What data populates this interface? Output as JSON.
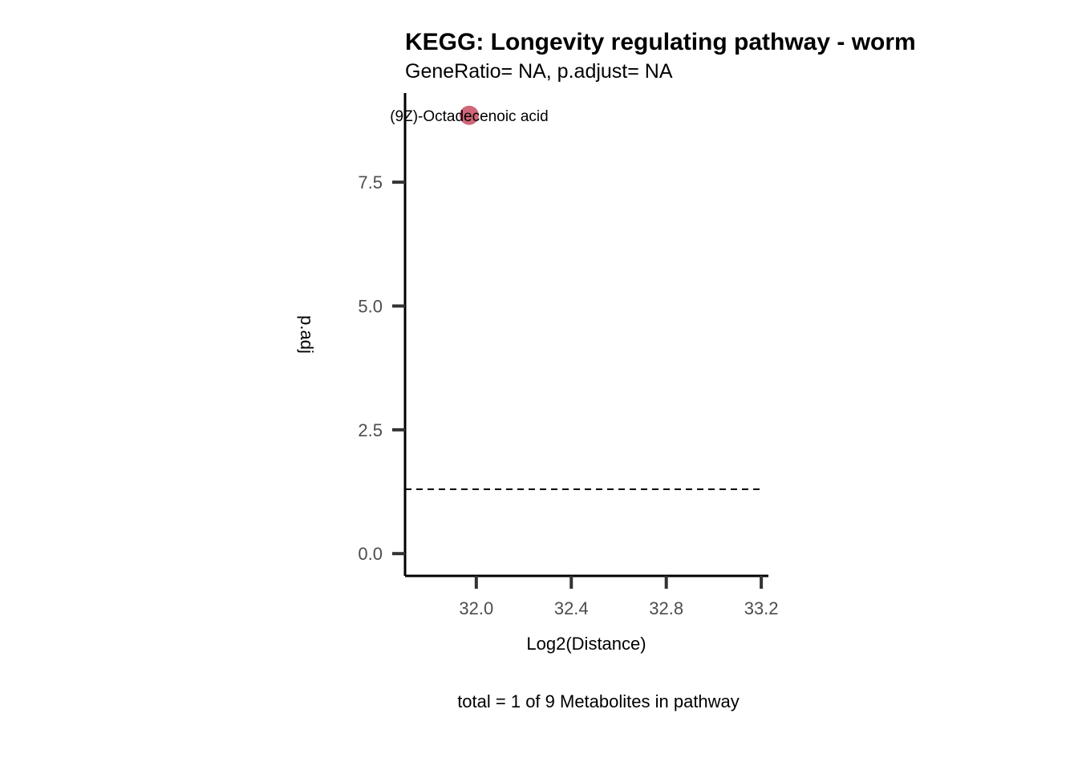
{
  "chart_data": {
    "type": "scatter",
    "title": "KEGG: Longevity regulating pathway - worm",
    "subtitle": "GeneRatio= NA, p.adjust= NA",
    "xlabel": "Log2(Distance)",
    "ylabel": "p.adj",
    "caption": "total = 1 of 9 Metabolites in pathway",
    "xlim": [
      31.7,
      33.23
    ],
    "ylim": [
      -0.45,
      9.3
    ],
    "x_ticks": [
      32.0,
      32.4,
      32.8,
      33.2
    ],
    "x_tick_labels": [
      "32.0",
      "32.4",
      "32.8",
      "33.2"
    ],
    "y_ticks": [
      0.0,
      2.5,
      5.0,
      7.5
    ],
    "y_tick_labels": [
      "0.0",
      "2.5",
      "5.0",
      "7.5"
    ],
    "threshold_line": {
      "y": 1.3,
      "style": "dashed",
      "color": "#000000"
    },
    "points": [
      {
        "x": 31.97,
        "y": 8.85,
        "label": "(9Z)-Octadecenoic acid",
        "color": "#c9566a"
      }
    ],
    "grid": false,
    "legend": "none"
  }
}
